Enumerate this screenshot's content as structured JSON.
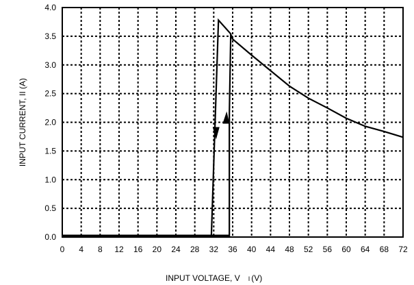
{
  "chart_data": {
    "type": "line",
    "title": "",
    "xlabel": "INPUT VOLTAGE, V",
    "xlabel_sub": "I",
    "xlabel_unit": "(V)",
    "ylabel": "INPUT CURRENT, II (A)",
    "xlim": [
      0,
      72
    ],
    "ylim": [
      0,
      4.0
    ],
    "x_ticks": [
      0,
      4,
      8,
      12,
      16,
      20,
      24,
      28,
      32,
      36,
      40,
      44,
      48,
      52,
      56,
      60,
      64,
      68,
      72
    ],
    "x_tick_labels": [
      "0",
      "4",
      "8",
      "12",
      "16",
      "20",
      "24",
      "28",
      "32",
      "36",
      "40",
      "44",
      "48",
      "52",
      "56",
      "60",
      "64",
      "68",
      "72"
    ],
    "y_ticks": [
      0,
      0.5,
      1.0,
      1.5,
      2.0,
      2.5,
      3.0,
      3.5,
      4.0
    ],
    "y_tick_labels": [
      "0.0",
      "0.5",
      "1.0",
      "1.5",
      "2.0",
      "2.5",
      "3.0",
      "3.5",
      "4.0"
    ],
    "grid": true,
    "grid_style": "dashed",
    "series": [
      {
        "values_xy": [
          [
            0,
            0.02
          ],
          [
            31.5,
            0.02
          ],
          [
            33.0,
            3.78
          ],
          [
            35.5,
            3.55
          ],
          [
            36.0,
            3.45
          ],
          [
            40,
            3.17
          ],
          [
            44,
            2.9
          ],
          [
            48,
            2.63
          ],
          [
            52,
            2.42
          ],
          [
            56,
            2.25
          ],
          [
            60,
            2.07
          ],
          [
            64,
            1.93
          ],
          [
            68,
            1.84
          ],
          [
            72,
            1.74
          ]
        ]
      },
      {
        "values_xy": [
          [
            0,
            0.0
          ],
          [
            35.3,
            0.0
          ],
          [
            35.3,
            2.15
          ],
          [
            35.6,
            3.55
          ]
        ]
      }
    ],
    "arrows": [
      {
        "direction": "down",
        "x": 32.5,
        "y": 1.75
      },
      {
        "direction": "up",
        "x": 34.6,
        "y": 2.0
      }
    ]
  }
}
